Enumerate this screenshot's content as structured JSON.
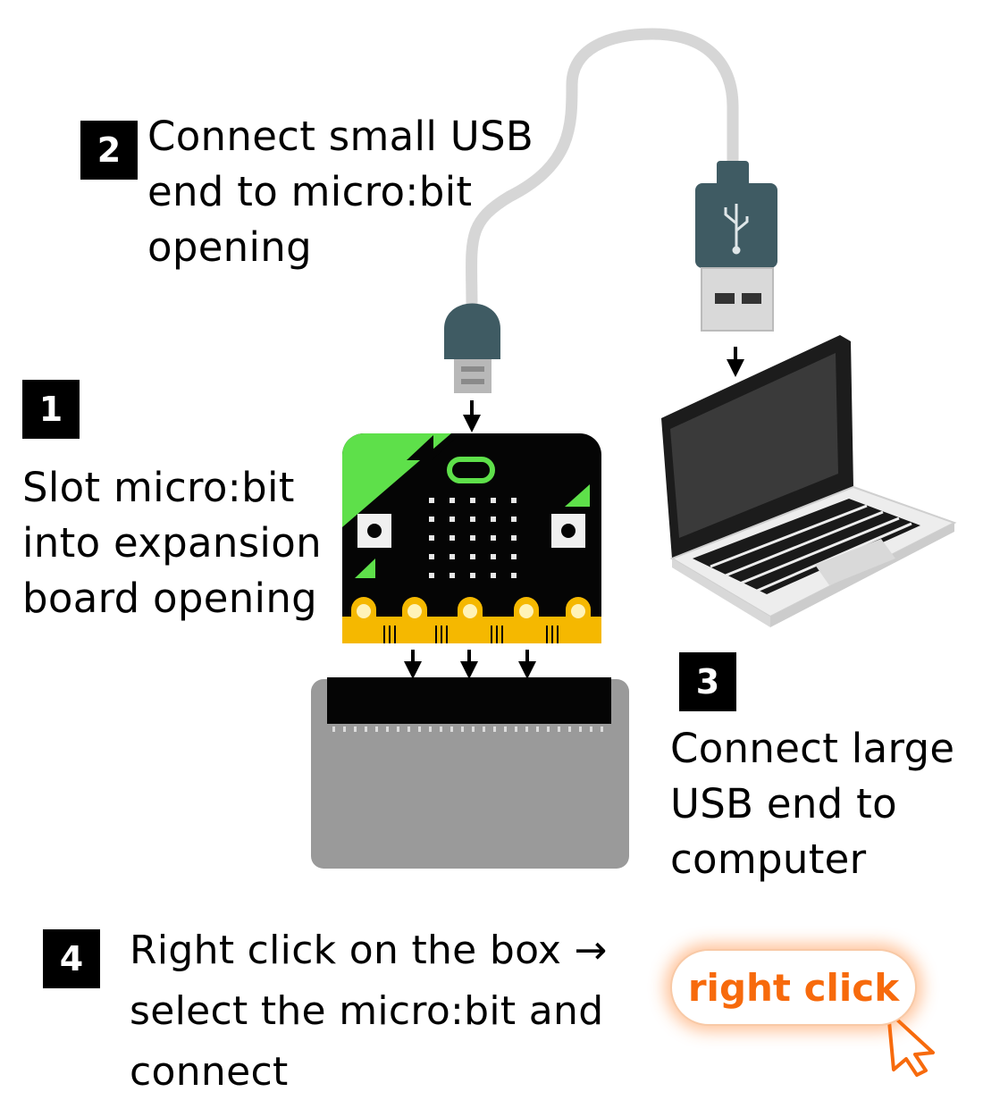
{
  "steps": [
    {
      "number": "1",
      "lines": [
        "Slot micro:bit",
        "into expansion",
        "board opening"
      ]
    },
    {
      "number": "2",
      "lines": [
        "Connect small USB",
        "end to micro:bit",
        "opening"
      ]
    },
    {
      "number": "3",
      "lines": [
        "Connect large",
        "USB end to",
        "computer"
      ]
    },
    {
      "number": "4",
      "lines": [
        "Right click on the box →",
        "select the micro:bit and",
        "connect"
      ]
    }
  ],
  "button": {
    "label": "right click"
  },
  "colors": {
    "accent_orange": "#f76a0c",
    "microbit_green": "#5ee04a",
    "pin_gold": "#f5b800",
    "cable_gray": "#d6d6d6",
    "connector_teal": "#3f5b63",
    "board_gray": "#9a9a9a"
  },
  "icons": [
    "usb-symbol-icon",
    "cursor-arrow-icon",
    "arrow-down-icon"
  ]
}
